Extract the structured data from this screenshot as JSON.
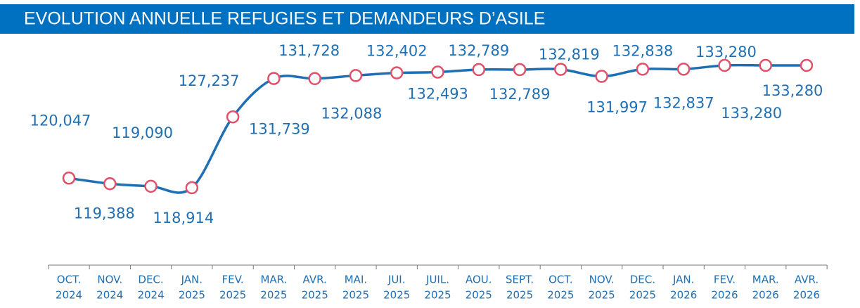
{
  "chart_data": {
    "type": "line",
    "title": "EVOLUTION ANNUELLE REFUGIES ET DEMANDEURS D’ASILE",
    "categories": [
      [
        "OCT.",
        "2024"
      ],
      [
        "NOV.",
        "2024"
      ],
      [
        "DEC.",
        "2024"
      ],
      [
        "JAN.",
        "2025"
      ],
      [
        "FEV.",
        "2025"
      ],
      [
        "MAR.",
        "2025"
      ],
      [
        "AVR.",
        "2025"
      ],
      [
        "MAI.",
        "2025"
      ],
      [
        "JUI.",
        "2025"
      ],
      [
        "JUIL.",
        "2025"
      ],
      [
        "AOU.",
        "2025"
      ],
      [
        "SEPT.",
        "2025"
      ],
      [
        "OCT.",
        "2025"
      ],
      [
        "NOV.",
        "2025"
      ],
      [
        "DEC.",
        "2025"
      ],
      [
        "JAN.",
        "2026"
      ],
      [
        "FEV.",
        "2026"
      ],
      [
        "MAR.",
        "2026"
      ],
      [
        "AVR.",
        "2026"
      ]
    ],
    "values": [
      120047,
      119388,
      119090,
      118914,
      127237,
      131739,
      131728,
      132088,
      132402,
      132493,
      132789,
      132789,
      132819,
      131997,
      132838,
      132837,
      133280,
      133280,
      133280
    ],
    "value_labels": [
      "120,047",
      "119,388",
      "119,090",
      "118,914",
      "127,237",
      "131,739",
      "131,728",
      "132,088",
      "132,402",
      "132,493",
      "132,789",
      "132,789",
      "132,819",
      "131,997",
      "132,838",
      "132,837",
      "133,280",
      "133,280",
      "133,280"
    ],
    "color": "#1f6fb5",
    "marker_color": "#e0506a"
  }
}
